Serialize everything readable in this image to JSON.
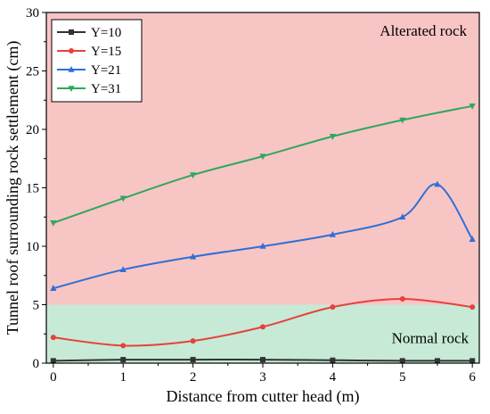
{
  "chart_data": {
    "type": "line",
    "xlabel": "Distance from cutter head (m)",
    "ylabel": "Tunnel roof surrounding rock settlement (cm)",
    "xlim": [
      -0.1,
      6.1
    ],
    "ylim": [
      0,
      30
    ],
    "x_ticks": [
      0,
      1,
      2,
      3,
      4,
      5,
      6
    ],
    "y_ticks": [
      0,
      5,
      10,
      15,
      20,
      25,
      30
    ],
    "grid": false,
    "legend_position": "top-left",
    "regions": [
      {
        "label": "Alterated rock",
        "y_from": 5,
        "y_to": 30,
        "color": "#f8c5c5"
      },
      {
        "label": "Normal rock",
        "y_from": 0,
        "y_to": 5,
        "color": "#c6ead5"
      }
    ],
    "series": [
      {
        "name": "Y=10",
        "color": "#333333",
        "marker": "square",
        "points": [
          [
            0,
            0.2
          ],
          [
            1,
            0.3
          ],
          [
            2,
            0.3
          ],
          [
            3,
            0.3
          ],
          [
            4,
            0.25
          ],
          [
            5,
            0.2
          ],
          [
            5.5,
            0.2
          ],
          [
            6,
            0.2
          ]
        ]
      },
      {
        "name": "Y=15",
        "color": "#e8403a",
        "marker": "circle",
        "points": [
          [
            0,
            2.2
          ],
          [
            1,
            1.5
          ],
          [
            2,
            1.9
          ],
          [
            3,
            3.1
          ],
          [
            4,
            4.8
          ],
          [
            5,
            5.5
          ],
          [
            6,
            4.8
          ]
        ]
      },
      {
        "name": "Y=21",
        "color": "#2f6fd6",
        "marker": "triangle-up",
        "points": [
          [
            0,
            6.4
          ],
          [
            1,
            8.0
          ],
          [
            2,
            9.1
          ],
          [
            3,
            10.0
          ],
          [
            4,
            11.0
          ],
          [
            5,
            12.5
          ],
          [
            5.5,
            15.3
          ],
          [
            6,
            10.6
          ]
        ]
      },
      {
        "name": "Y=31",
        "color": "#2ea85c",
        "marker": "triangle-down",
        "points": [
          [
            0,
            12.0
          ],
          [
            1,
            14.1
          ],
          [
            2,
            16.1
          ],
          [
            3,
            17.7
          ],
          [
            4,
            19.4
          ],
          [
            5,
            20.8
          ],
          [
            6,
            22.0
          ]
        ]
      }
    ]
  }
}
